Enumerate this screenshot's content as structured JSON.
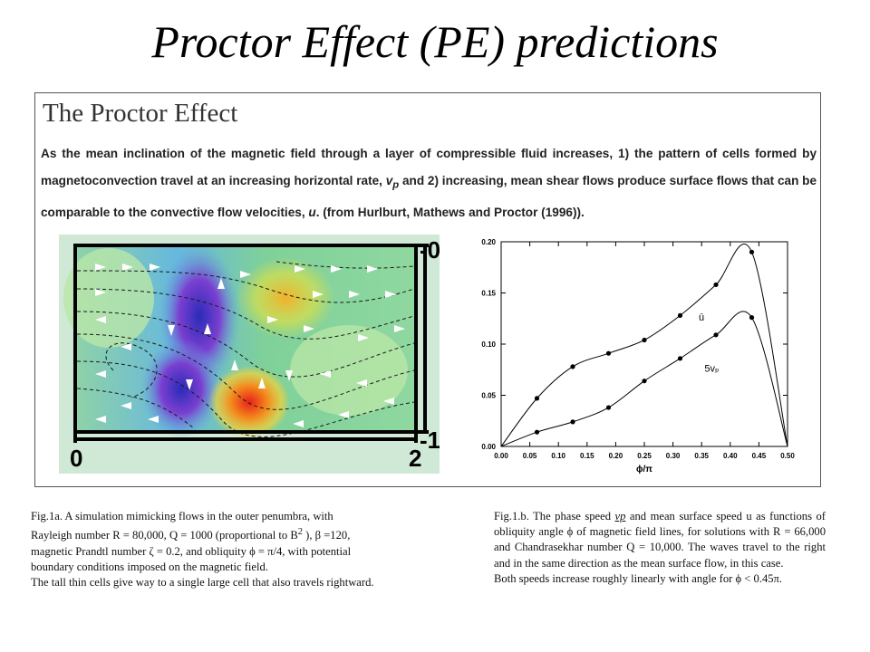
{
  "slide": {
    "title": "Proctor Effect (PE) predictions"
  },
  "panel": {
    "heading": "The Proctor Effect",
    "text_a": "As the mean inclination of the magnetic field through a layer of compressible fluid increases, 1) the pattern of cells formed by magnetoconvection travel at an increasing horizontal rate, ",
    "text_vp": "v",
    "text_vp_sub": "p",
    "text_b": " and 2) increasing, mean shear flows produce surface flows that can be comparable to the convective flow velocities, ",
    "text_u": "u",
    "text_c": ". (from Hurlburt, Mathews and Proctor (1996))."
  },
  "simulation": {
    "x_tick_left": "0",
    "x_tick_right": "2",
    "y_tick_top": "-0",
    "y_tick_bottom": "-1"
  },
  "chart_data": {
    "type": "line",
    "xlabel": "ϕ/π",
    "ylabel": "",
    "xlim": [
      0,
      0.5
    ],
    "ylim": [
      0,
      0.2
    ],
    "x_ticks": [
      "0.00",
      "0.05",
      "0.10",
      "0.15",
      "0.20",
      "0.25",
      "0.30",
      "0.35",
      "0.40",
      "0.45",
      "0.50"
    ],
    "y_ticks": [
      "0.00",
      "0.05",
      "0.10",
      "0.15",
      "0.20"
    ],
    "grid": false,
    "series": [
      {
        "name": "ū",
        "points": [
          [
            0,
            0
          ],
          [
            0.0625,
            0.047
          ],
          [
            0.125,
            0.078
          ],
          [
            0.1875,
            0.091
          ],
          [
            0.25,
            0.104
          ],
          [
            0.3125,
            0.128
          ],
          [
            0.375,
            0.158
          ],
          [
            0.4375,
            0.19
          ],
          [
            0.5,
            0
          ]
        ]
      },
      {
        "name": "5vₚ",
        "points": [
          [
            0,
            0
          ],
          [
            0.0625,
            0.014
          ],
          [
            0.125,
            0.024
          ],
          [
            0.1875,
            0.038
          ],
          [
            0.25,
            0.064
          ],
          [
            0.3125,
            0.086
          ],
          [
            0.375,
            0.109
          ],
          [
            0.4375,
            0.126
          ],
          [
            0.5,
            0
          ]
        ]
      }
    ]
  },
  "caption_left": {
    "line1": "Fig.1a. A simulation mimicking  flows in the outer penumbra,  with",
    "line2": "Rayleigh number R = 80,000, Q = 1000 (proportional  to B",
    "line2_sup": "2",
    "line2_end": " ),  β =120,",
    "line3": "magnetic Prandtl number  ζ = 0.2, and obliquity  ϕ  =  π/4, with potential",
    "line4": "boundary conditions imposed on the magnetic field.",
    "line5": "The tall thin cells give way to a single large cell that also travels rightward."
  },
  "caption_right": {
    "a": "Fig.1.b. The phase speed ",
    "vp": "vp",
    "b": " and mean surface speed u as functions of obliquity angle ϕ of magnetic field lines, for solutions with R = 66,000 and Chandrasekhar number Q = 10,000.  The waves travel to the right and in the same direction as the mean surface flow, in this case.",
    "c": "Both speeds increase roughly linearly with angle for ϕ < 0.45π."
  }
}
